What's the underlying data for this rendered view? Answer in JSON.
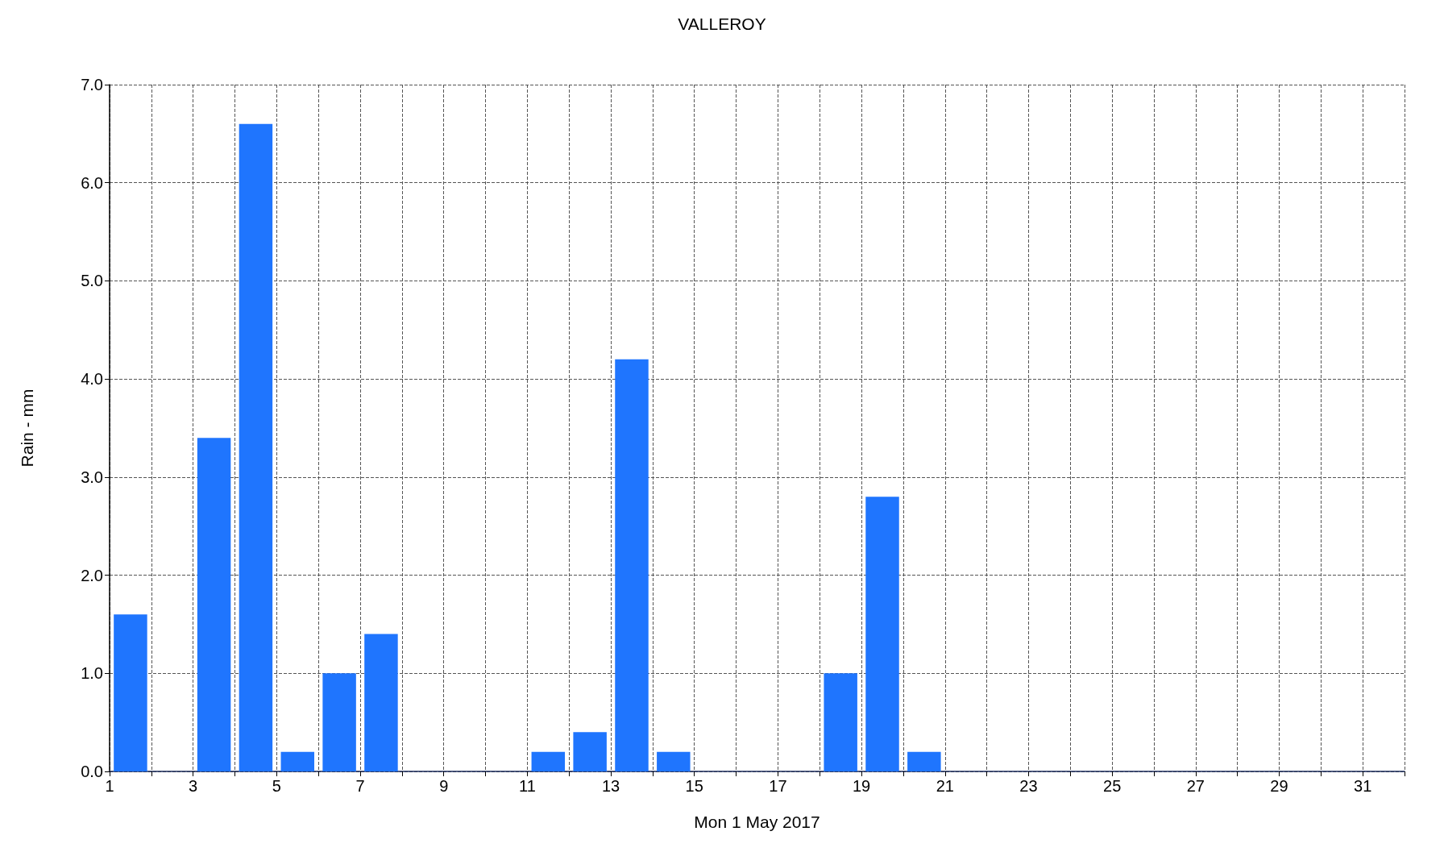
{
  "chart_data": {
    "type": "bar",
    "title": "VALLEROY",
    "xlabel": "Mon 1 May 2017",
    "ylabel": "Rain - mm",
    "x": [
      1.5,
      2.5,
      3.5,
      4.5,
      5.5,
      6.5,
      7.5,
      8.5,
      9.5,
      10.5,
      11.5,
      12.5,
      13.5,
      14.5,
      15.5,
      16.5,
      17.5,
      18.5,
      19.5,
      20.5,
      21.5,
      22.5,
      23.5,
      24.5,
      25.5,
      26.5,
      27.5,
      28.5,
      29.5,
      30.5,
      31.5
    ],
    "values": [
      1.6,
      0,
      3.4,
      6.6,
      0.2,
      1.0,
      1.4,
      0,
      0,
      0,
      0.2,
      0.4,
      4.2,
      0.2,
      0,
      0,
      0,
      1.0,
      2.8,
      0.2,
      0,
      0,
      0,
      0,
      0,
      0,
      0,
      0,
      0,
      0,
      0
    ],
    "color": "#1f75fe",
    "xlim": [
      1,
      32
    ],
    "xticks": [
      1,
      {
        "value": 2,
        "label": null
      },
      3,
      {
        "value": 4,
        "label": null
      },
      5,
      {
        "value": 6,
        "label": null
      },
      7,
      {
        "value": 8,
        "label": null
      },
      9,
      {
        "value": 10,
        "label": null
      },
      11,
      {
        "value": 12,
        "label": null
      },
      13,
      {
        "value": 14,
        "label": null
      },
      15,
      {
        "value": 16,
        "label": null
      },
      17,
      {
        "value": 18,
        "label": null
      },
      19,
      {
        "value": 20,
        "label": null
      },
      21,
      {
        "value": 22,
        "label": null
      },
      23,
      {
        "value": 24,
        "label": null
      },
      25,
      {
        "value": 26,
        "label": null
      },
      27,
      {
        "value": 28,
        "label": null
      },
      29,
      {
        "value": 30,
        "label": null
      },
      31,
      {
        "value": 32,
        "label": null
      }
    ],
    "ylim": [
      0,
      7
    ],
    "yticks": [
      {
        "value": 0,
        "label": "0.0"
      },
      {
        "value": 1,
        "label": "1.0"
      },
      {
        "value": 2,
        "label": "2.0"
      },
      {
        "value": 3,
        "label": "3.0"
      },
      {
        "value": 4,
        "label": "4.0"
      },
      {
        "value": 5,
        "label": "5.0"
      },
      {
        "value": 6,
        "label": "6.0"
      },
      {
        "value": 7,
        "label": "7.0"
      }
    ],
    "grid": true
  }
}
